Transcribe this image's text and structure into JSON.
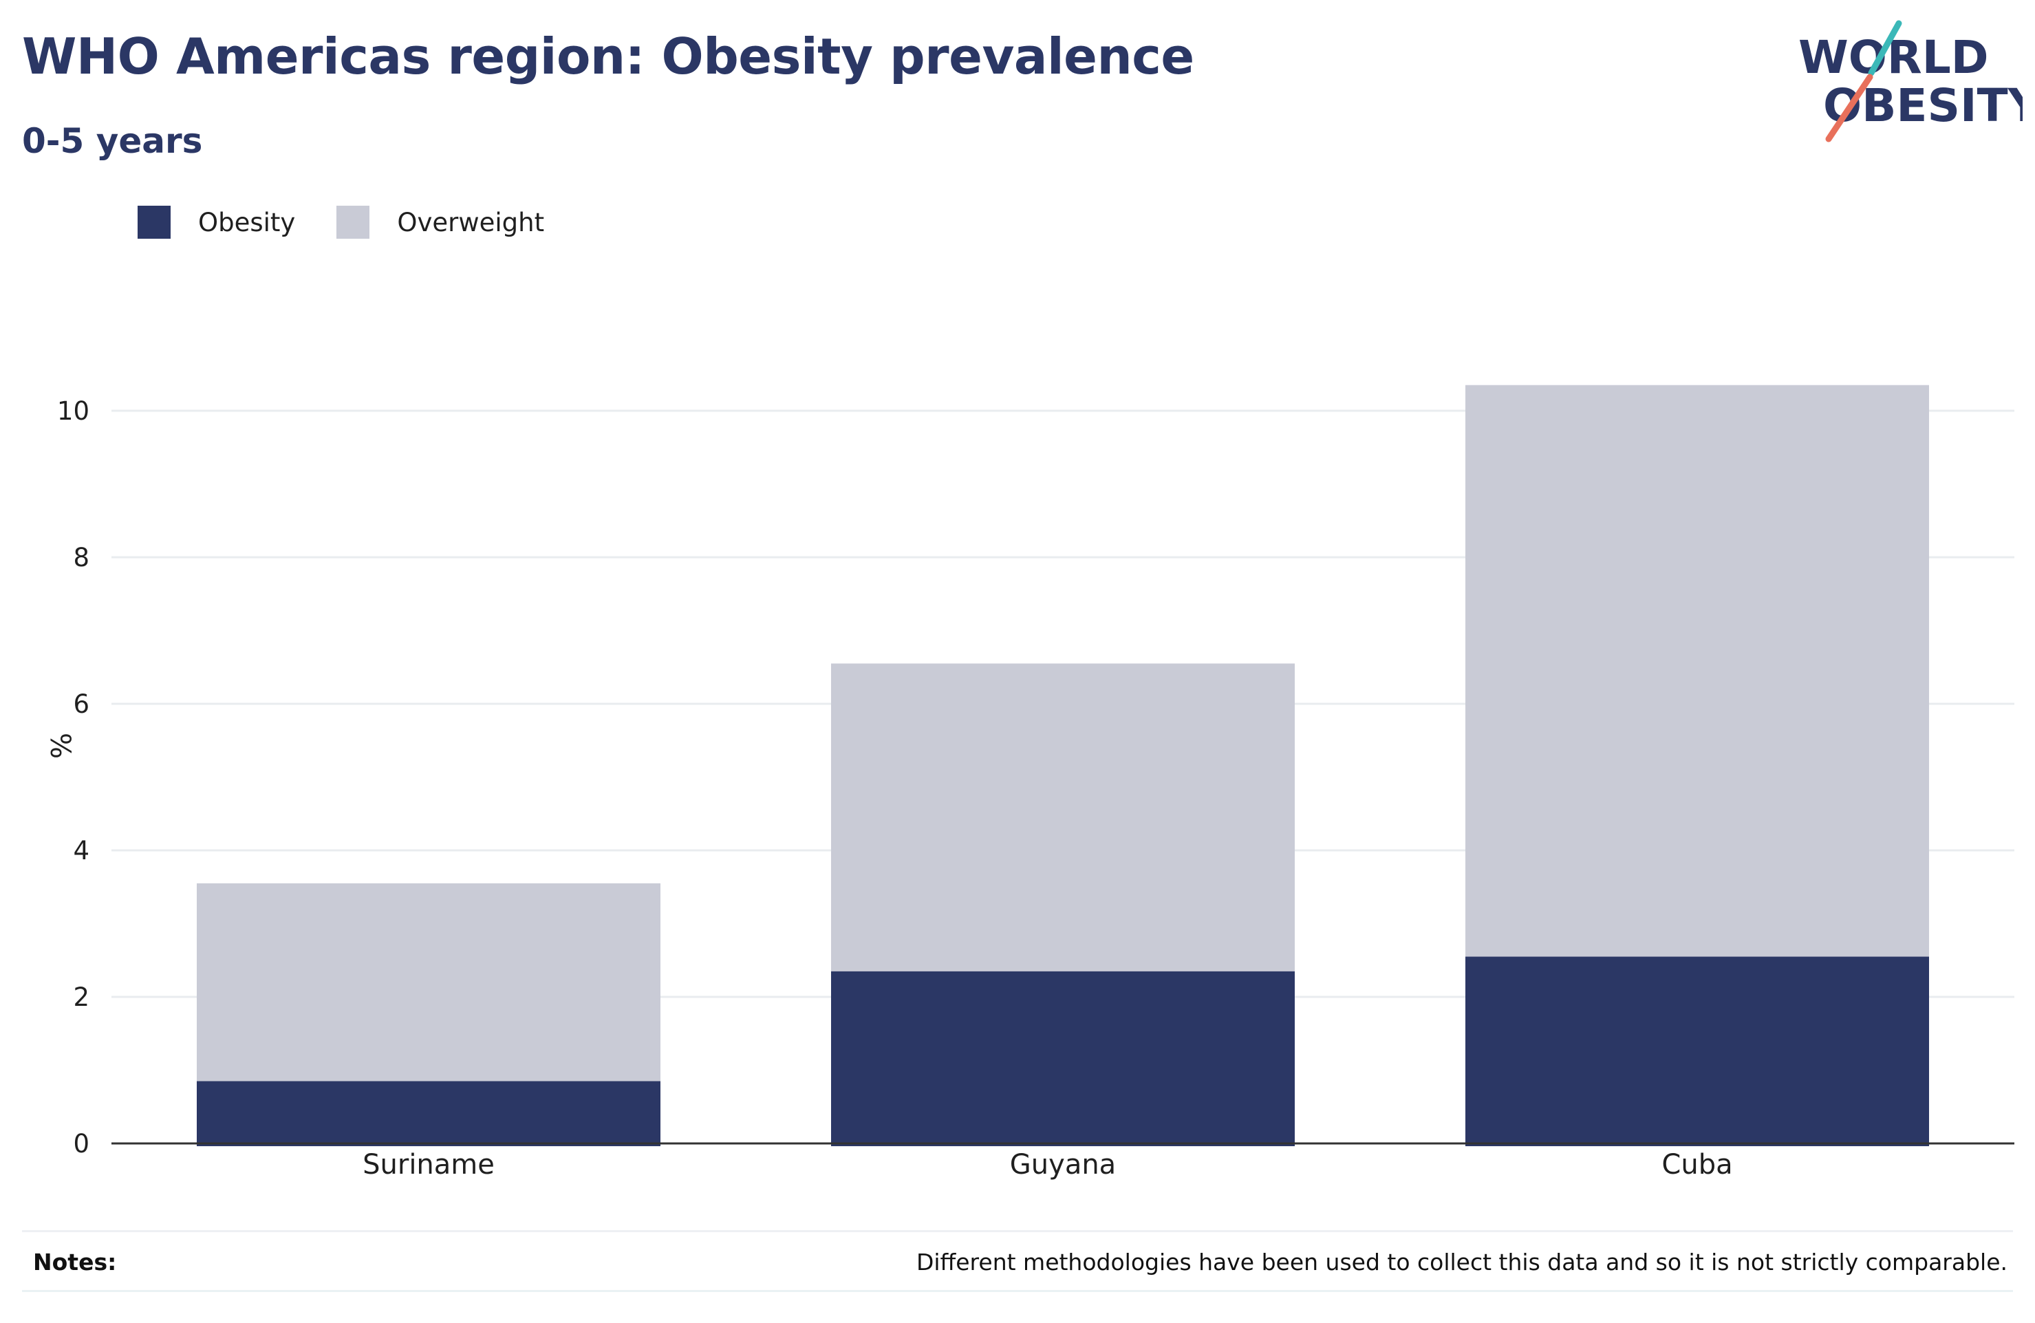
{
  "title": "WHO Americas region: Obesity prevalence",
  "subtitle": "0-5 years",
  "logo": {
    "line1": "WORLD",
    "line2": "OBESITY"
  },
  "colors": {
    "obesity": "#2b3765",
    "overweight": "#c9cbd6",
    "title": "#2b3765",
    "logo_teal": "#3bb8b8",
    "logo_coral": "#e8705b"
  },
  "notes": {
    "label": "Notes:",
    "text": "Different methodologies have been used to collect this data and so it is not strictly comparable."
  },
  "chart_data": {
    "type": "bar",
    "stacked": true,
    "categories": [
      "Suriname",
      "Guyana",
      "Cuba"
    ],
    "series": [
      {
        "name": "Obesity",
        "values": [
          0.85,
          2.35,
          2.55
        ],
        "color": "#2b3765"
      },
      {
        "name": "Overweight",
        "values": [
          2.7,
          4.2,
          7.8
        ],
        "color": "#c9cbd6"
      }
    ],
    "ylabel": "%",
    "xlabel": "",
    "ylim": [
      0,
      11
    ],
    "yticks": [
      0,
      2,
      4,
      6,
      8,
      10
    ],
    "grid": true,
    "legend": "top-left"
  }
}
